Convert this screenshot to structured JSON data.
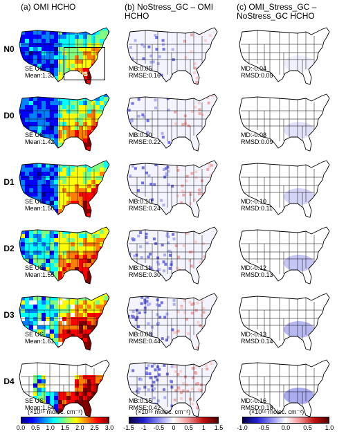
{
  "columns": [
    {
      "label": "(a) OMI HCHO"
    },
    {
      "label": "(b) NoStress_GC – OMI\nHCHO"
    },
    {
      "label": "(c) OMI_Stress_GC –\nNoStress_GC HCHO"
    }
  ],
  "box_label": "SE US",
  "rows": [
    {
      "label": "N0",
      "a": [
        "SE US",
        "Mean:1.33"
      ],
      "b": [
        "MB:0.05",
        "RMSE:0.16"
      ],
      "c": [
        "MD:-0.04",
        "RMSD:0.05"
      ]
    },
    {
      "label": "D0",
      "a": [
        "SE US",
        "Mean:1.42"
      ],
      "b": [
        "MB:0.10",
        "RMSE:0.22"
      ],
      "c": [
        "MD:-0.08",
        "RMSD:0.09"
      ]
    },
    {
      "label": "D1",
      "a": [
        "SE US",
        "Mean:1.50"
      ],
      "b": [
        "MB:0.10",
        "RMSE:0.24"
      ],
      "c": [
        "MD:-0.10",
        "RMSD:0.11"
      ]
    },
    {
      "label": "D2",
      "a": [
        "SE US",
        "Mean:1.55"
      ],
      "b": [
        "MB:0.11",
        "RMSE:0.30"
      ],
      "c": [
        "MD:-0.12",
        "RMSD:0.13"
      ]
    },
    {
      "label": "D3",
      "a": [
        "SE US",
        "Mean:1.61"
      ],
      "b": [
        "MB:0.08",
        "RMSE:0.44"
      ],
      "c": [
        "MD:-0.13",
        "RMSD:0.14"
      ]
    },
    {
      "label": "D4",
      "a": [
        "SE US",
        "Mean:1.64"
      ],
      "b": [
        "MB:0.15",
        "RMSE:0.42"
      ],
      "c": [
        "MD:-0.16",
        "RMSD:0.18"
      ]
    }
  ],
  "colorbars": [
    {
      "title": "(×10¹⁶ molec. cm⁻²)",
      "ticks": [
        "0.0",
        "0.5",
        "1.0",
        "1.5",
        "2.0",
        "2.5",
        "3.0"
      ],
      "colors": [
        "#00008f",
        "#0000ff",
        "#0080ff",
        "#00ffff",
        "#80ff80",
        "#ffff00",
        "#ff8000",
        "#ff0000",
        "#800000"
      ]
    },
    {
      "title": "(×10¹⁶ molec. cm⁻²)",
      "ticks": [
        "-1.5",
        "-1",
        "-0.5",
        "0",
        "0.5",
        "1",
        "1.5"
      ],
      "colors": [
        "#08004a",
        "#2020d0",
        "#8c8cf0",
        "#ffffff",
        "#f09090",
        "#c01010",
        "#500000"
      ]
    },
    {
      "title": "(×10¹⁶ molec. cm⁻²)",
      "ticks": [
        "-1.0",
        "-0.5",
        "0.0",
        "0.5",
        "1.0"
      ],
      "colors": [
        "#08004a",
        "#2020d0",
        "#8c8cf0",
        "#ffffff",
        "#f09090",
        "#c01010",
        "#500000"
      ]
    }
  ]
}
